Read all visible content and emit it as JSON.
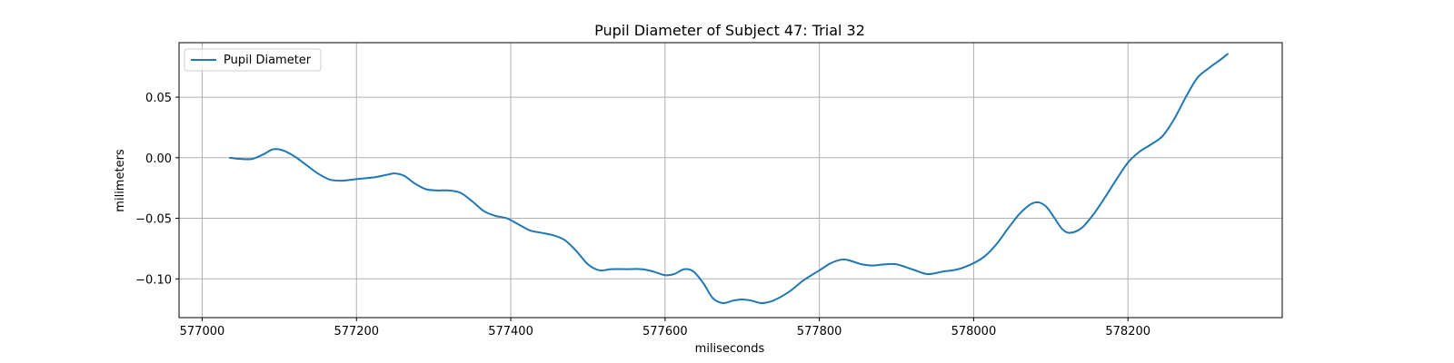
{
  "chart_data": {
    "type": "line",
    "title": "Pupil Diameter of Subject 47: Trial 32",
    "xlabel": "miliseconds",
    "ylabel": "milimeters",
    "xlim": [
      576970,
      578400
    ],
    "ylim": [
      -0.132,
      0.095
    ],
    "xticks": [
      577000,
      577200,
      577400,
      577600,
      577800,
      578000,
      578200
    ],
    "xtick_labels": [
      "577000",
      "577200",
      "577400",
      "577600",
      "577800",
      "578000",
      "578200"
    ],
    "yticks": [
      -0.1,
      -0.05,
      0.0,
      0.05
    ],
    "ytick_labels": [
      "−0.10",
      "−0.05",
      "0.00",
      "0.05"
    ],
    "grid": true,
    "legend_position": "top-left",
    "series": [
      {
        "name": "Pupil Diameter",
        "color": "#1f77b4",
        "x": [
          577035,
          577050,
          577065,
          577080,
          577092,
          577105,
          577120,
          577135,
          577150,
          577165,
          577180,
          577195,
          577210,
          577225,
          577240,
          577250,
          577262,
          577275,
          577290,
          577305,
          577320,
          577335,
          577350,
          577365,
          577380,
          577395,
          577410,
          577425,
          577440,
          577455,
          577470,
          577485,
          577500,
          577515,
          577530,
          577550,
          577570,
          577585,
          577600,
          577612,
          577625,
          577637,
          577650,
          577662,
          577675,
          577688,
          577700,
          577712,
          577725,
          577740,
          577760,
          577780,
          577800,
          577815,
          577830,
          577840,
          577855,
          577870,
          577885,
          577900,
          577920,
          577940,
          577960,
          577980,
          578000,
          578015,
          578030,
          578045,
          578060,
          578075,
          578085,
          578095,
          578105,
          578115,
          578125,
          578140,
          578155,
          578170,
          578185,
          578200,
          578215,
          578230,
          578245,
          578260,
          578275,
          578290,
          578305,
          578320,
          578330
        ],
        "y": [
          0.0,
          -0.001,
          -0.001,
          0.003,
          0.007,
          0.006,
          0.001,
          -0.006,
          -0.013,
          -0.018,
          -0.019,
          -0.018,
          -0.017,
          -0.016,
          -0.014,
          -0.013,
          -0.015,
          -0.021,
          -0.026,
          -0.027,
          -0.027,
          -0.029,
          -0.036,
          -0.044,
          -0.048,
          -0.05,
          -0.055,
          -0.06,
          -0.062,
          -0.064,
          -0.068,
          -0.077,
          -0.088,
          -0.093,
          -0.092,
          -0.092,
          -0.092,
          -0.094,
          -0.097,
          -0.096,
          -0.092,
          -0.094,
          -0.104,
          -0.116,
          -0.12,
          -0.118,
          -0.117,
          -0.118,
          -0.12,
          -0.118,
          -0.111,
          -0.101,
          -0.093,
          -0.087,
          -0.084,
          -0.085,
          -0.088,
          -0.089,
          -0.088,
          -0.088,
          -0.092,
          -0.096,
          -0.094,
          -0.092,
          -0.087,
          -0.081,
          -0.071,
          -0.058,
          -0.046,
          -0.038,
          -0.037,
          -0.041,
          -0.05,
          -0.059,
          -0.062,
          -0.058,
          -0.047,
          -0.033,
          -0.018,
          -0.004,
          0.005,
          0.011,
          0.018,
          0.032,
          0.05,
          0.066,
          0.074,
          0.081,
          0.086
        ]
      }
    ]
  }
}
